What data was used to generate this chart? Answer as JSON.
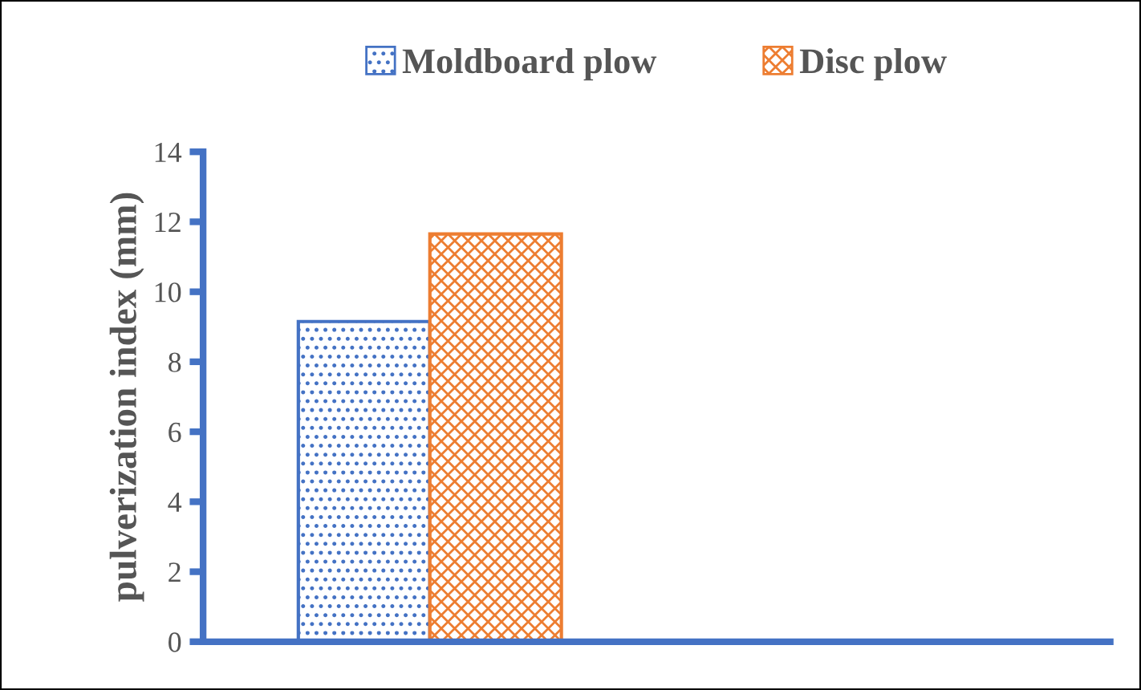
{
  "chart_data": {
    "type": "bar",
    "ylabel": "pulverization index (mm)",
    "categories": [
      null,
      null
    ],
    "series": [
      {
        "name": "Moldboard plow",
        "color": "#4472c4",
        "values": [
          9.15,
          null
        ]
      },
      {
        "name": "Disc plow",
        "color": "#ed7d31",
        "values": [
          11.65,
          null
        ]
      }
    ],
    "ylim": [
      0,
      14
    ],
    "yticks": [
      0,
      2,
      4,
      6,
      8,
      10,
      12,
      14
    ],
    "grid": false,
    "legend": "top"
  }
}
